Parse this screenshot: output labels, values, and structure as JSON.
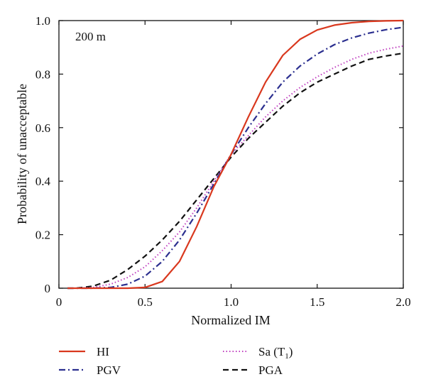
{
  "chart_data": {
    "type": "line",
    "title": "",
    "xlabel": "Normalized IM",
    "ylabel": "Probability of unacceptable",
    "annotation": "200 m",
    "xlim": [
      0,
      2.0
    ],
    "ylim": [
      0,
      1.0
    ],
    "x_ticks": [
      "0",
      "0.5",
      "1.0",
      "1.5",
      "2.0"
    ],
    "y_ticks": [
      "0",
      "0.2",
      "0.4",
      "0.6",
      "0.8",
      "1.0"
    ],
    "grid": false,
    "legend_position": "bottom",
    "x": [
      0.05,
      0.1,
      0.2,
      0.3,
      0.4,
      0.5,
      0.6,
      0.7,
      0.8,
      0.9,
      1.0,
      1.1,
      1.2,
      1.3,
      1.4,
      1.5,
      1.6,
      1.7,
      1.8,
      1.9,
      2.0
    ],
    "series": [
      {
        "name": "HI",
        "color": "#d9381e",
        "dash": "solid",
        "values": [
          0.0,
          0.0,
          0.0,
          0.0,
          0.0,
          0.003,
          0.025,
          0.1,
          0.23,
          0.38,
          0.5,
          0.64,
          0.77,
          0.87,
          0.93,
          0.965,
          0.983,
          0.992,
          0.997,
          0.999,
          1.0
        ]
      },
      {
        "name": "PGV",
        "color": "#2b2f8f",
        "dash": "dashdot",
        "values": [
          0.0,
          0.0,
          0.0,
          0.003,
          0.015,
          0.045,
          0.1,
          0.18,
          0.28,
          0.39,
          0.5,
          0.6,
          0.69,
          0.77,
          0.83,
          0.875,
          0.91,
          0.935,
          0.953,
          0.966,
          0.975
        ]
      },
      {
        "name": "Sa (T1)",
        "color": "#c040c0",
        "dash": "dotted",
        "values": [
          0.0,
          0.0,
          0.003,
          0.015,
          0.04,
          0.08,
          0.14,
          0.21,
          0.3,
          0.4,
          0.5,
          0.57,
          0.64,
          0.7,
          0.75,
          0.79,
          0.825,
          0.855,
          0.878,
          0.893,
          0.905
        ]
      },
      {
        "name": "PGA",
        "color": "#111111",
        "dash": "dashed",
        "values": [
          0.0,
          0.0,
          0.008,
          0.03,
          0.07,
          0.12,
          0.18,
          0.25,
          0.33,
          0.41,
          0.49,
          0.56,
          0.62,
          0.68,
          0.73,
          0.77,
          0.8,
          0.83,
          0.855,
          0.868,
          0.878
        ]
      }
    ]
  },
  "legend": {
    "hi": "HI",
    "pgv": "PGV",
    "sa_main": "Sa (T",
    "sa_sub": "1",
    "sa_close": ")",
    "pga": "PGA"
  }
}
